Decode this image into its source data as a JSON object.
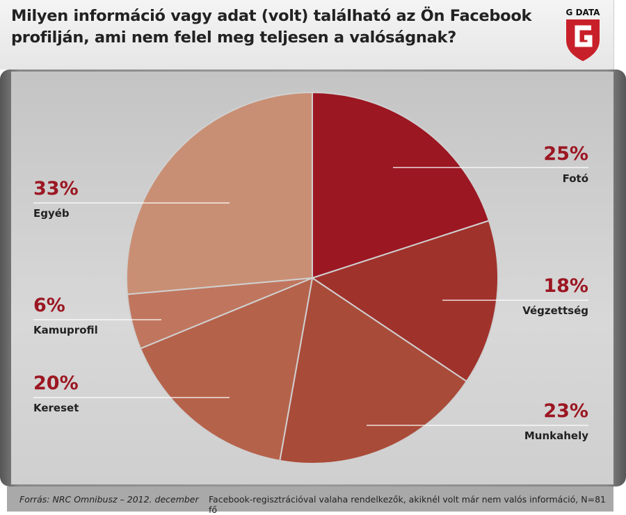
{
  "header": {
    "title_line1": "Milyen információ vagy adat (volt) található az Ön Facebook",
    "title_line2": "profilján, ami nem felel meg teljesen a valóságnak?",
    "logo_text": "G DATA"
  },
  "footer": {
    "source": "Forrás: NRC Omnibusz – 2012. december",
    "note": "Facebook-regisztrációval valaha rendelkezők, akiknél volt már nem valós információ, N=81 fő"
  },
  "chart_data": {
    "type": "pie",
    "title": "Milyen információ vagy adat (volt) található az Ön Facebook profilján, ami nem felel meg teljesen a valóságnak?",
    "categories": [
      "Fotó",
      "Végzettség",
      "Munkahely",
      "Kereset",
      "Kamuprofil",
      "Egyéb"
    ],
    "values": [
      25,
      18,
      23,
      20,
      6,
      33
    ],
    "labels": [
      "25%",
      "18%",
      "23%",
      "20%",
      "6%",
      "33%"
    ],
    "colors": [
      "#9b1722",
      "#a0322c",
      "#a94b39",
      "#b5624b",
      "#c0765e",
      "#c98f74"
    ]
  }
}
